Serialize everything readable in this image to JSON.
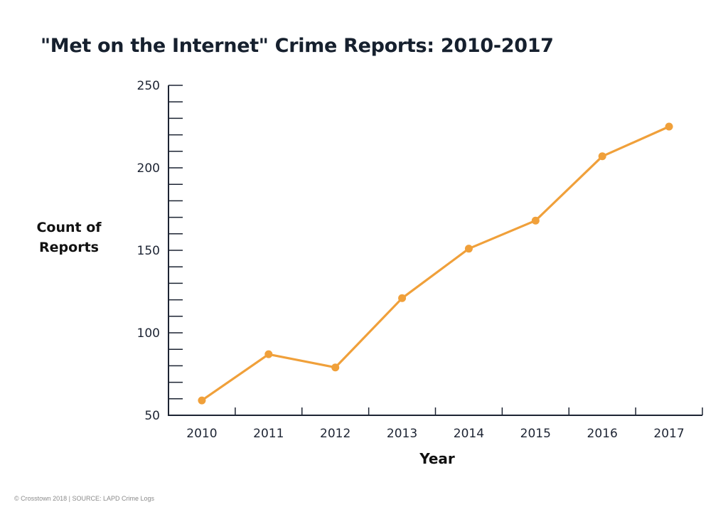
{
  "title": "\"Met on the Internet\" Crime Reports: 2010-2017",
  "footer": "© Crosstown 2018 | SOURCE: LAPD Crime Logs",
  "colors": {
    "line": "#f0a03a",
    "axis": "#1d2433"
  },
  "chart_data": {
    "type": "line",
    "title": "\"Met on the Internet\" Crime Reports: 2010-2017",
    "xlabel": "Year",
    "ylabel": "Count of Reports",
    "ylabel_lines": [
      "Count of",
      "Reports"
    ],
    "categories": [
      "2010",
      "2011",
      "2012",
      "2013",
      "2014",
      "2015",
      "2016",
      "2017"
    ],
    "series": [
      {
        "values": [
          59,
          87,
          79,
          121,
          151,
          168,
          207,
          225
        ]
      }
    ],
    "ylim": [
      50,
      250
    ],
    "yticks": [
      50,
      100,
      150,
      200,
      250
    ],
    "minor_tick_step": 10,
    "grid": false,
    "legend": "none"
  }
}
